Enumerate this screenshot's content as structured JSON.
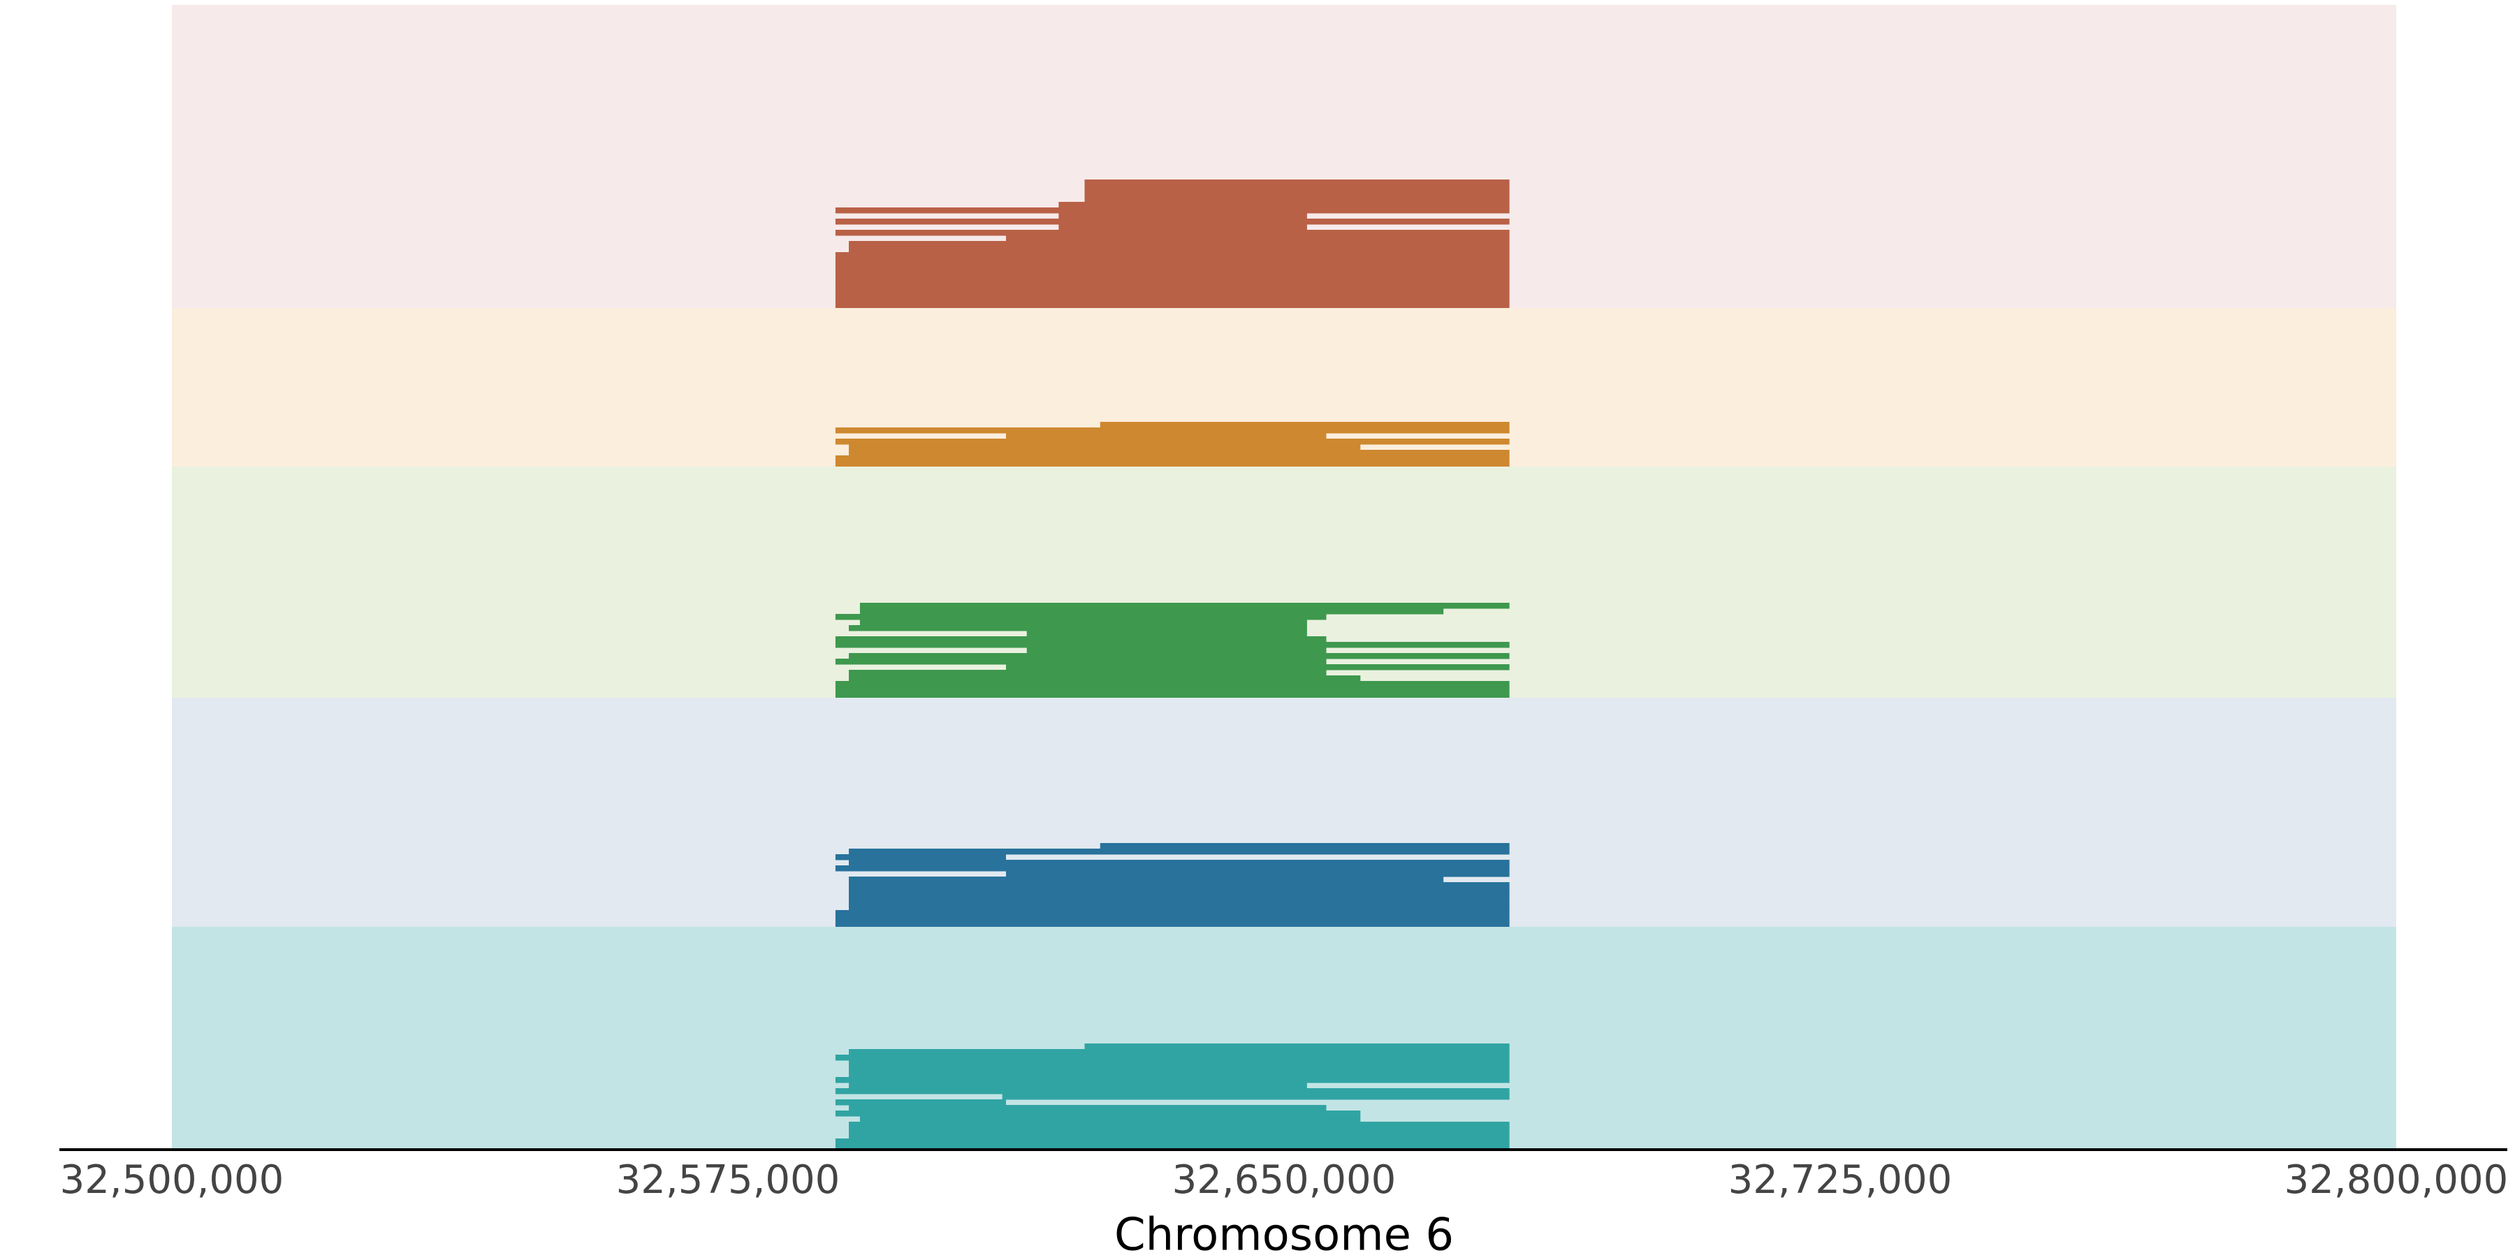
{
  "chart_data": {
    "type": "segments",
    "xlabel": "Chromosome 6",
    "xlim": [
      32500000,
      32800000
    ],
    "xticks": [
      {
        "value": 32500000,
        "label": "32,500,000"
      },
      {
        "value": 32575000,
        "label": "32,575,000"
      },
      {
        "value": 32650000,
        "label": "32,650,000"
      },
      {
        "value": 32725000,
        "label": "32,725,000"
      },
      {
        "value": 32800000,
        "label": "32,800,000"
      }
    ],
    "series": [
      {
        "color": "#b86146",
        "background": "#f7eaeb",
        "segments": [
          [
            32589500,
            32680400
          ],
          [
            32589500,
            32680400
          ],
          [
            32589500,
            32680400
          ],
          [
            32589500,
            32680400
          ],
          [
            32589500,
            32680400
          ],
          [
            32589500,
            32680400
          ],
          [
            32589500,
            32680400
          ],
          [
            32589500,
            32680400
          ],
          [
            32589500,
            32680400
          ],
          [
            32589500,
            32680400
          ],
          [
            32591300,
            32680400
          ],
          [
            32591300,
            32680400
          ],
          [
            32612500,
            32680400
          ],
          [
            32589500,
            32680400
          ],
          [
            32619600,
            32653100
          ],
          [
            32589500,
            32680400
          ],
          [
            32619600,
            32653100
          ],
          [
            32589500,
            32680400
          ],
          [
            32619600,
            32680400
          ],
          [
            32623100,
            32680400
          ],
          [
            32623100,
            32680400
          ],
          [
            32623100,
            32680400
          ],
          [
            32623100,
            32680400
          ]
        ]
      },
      {
        "color": "#ce882f",
        "background": "#fbeedd",
        "segments": [
          [
            32589500,
            32680400
          ],
          [
            32589500,
            32680400
          ],
          [
            32591300,
            32680400
          ],
          [
            32591300,
            32660300
          ],
          [
            32589500,
            32680400
          ],
          [
            32612500,
            32655700
          ],
          [
            32589500,
            32680400
          ],
          [
            32625200,
            32680400
          ]
        ]
      },
      {
        "color": "#3e984e",
        "background": "#eaf1df",
        "segments": [
          [
            32589500,
            32680400
          ],
          [
            32589500,
            32680400
          ],
          [
            32589500,
            32680400
          ],
          [
            32591300,
            32660300
          ],
          [
            32591300,
            32655700
          ],
          [
            32612500,
            32680400
          ],
          [
            32589500,
            32655700
          ],
          [
            32591300,
            32680400
          ],
          [
            32615300,
            32655700
          ],
          [
            32589500,
            32680400
          ],
          [
            32589500,
            32655700
          ],
          [
            32615300,
            32653100
          ],
          [
            32591300,
            32653100
          ],
          [
            32592800,
            32653100
          ],
          [
            32589500,
            32655700
          ],
          [
            32592800,
            32671500
          ],
          [
            32592800,
            32680400
          ]
        ]
      },
      {
        "color": "#28729c",
        "background": "#e2e9f0",
        "segments": [
          [
            32589500,
            32680400
          ],
          [
            32589500,
            32680400
          ],
          [
            32589500,
            32680400
          ],
          [
            32591300,
            32680400
          ],
          [
            32591300,
            32680400
          ],
          [
            32591300,
            32680400
          ],
          [
            32591300,
            32680400
          ],
          [
            32591300,
            32680400
          ],
          [
            32591300,
            32671500
          ],
          [
            32612500,
            32680400
          ],
          [
            32589500,
            32680400
          ],
          [
            32591300,
            32680400
          ],
          [
            32589500,
            32612500
          ],
          [
            32591300,
            32680400
          ],
          [
            32625200,
            32680400
          ]
        ]
      },
      {
        "color": "#30a4a3",
        "background": "#c3e4e5",
        "segments": [
          [
            32589500,
            32680400
          ],
          [
            32589500,
            32680400
          ],
          [
            32591300,
            32680400
          ],
          [
            32591300,
            32680400
          ],
          [
            32591300,
            32680400
          ],
          [
            32592800,
            32660300
          ],
          [
            32589500,
            32660300
          ],
          [
            32591300,
            32655700
          ],
          [
            32589500,
            32612500
          ],
          [
            32612000,
            32680400
          ],
          [
            32589500,
            32680400
          ],
          [
            32591300,
            32653100
          ],
          [
            32589500,
            32680400
          ],
          [
            32591300,
            32680400
          ],
          [
            32591300,
            32680400
          ],
          [
            32591300,
            32680400
          ],
          [
            32589500,
            32680400
          ],
          [
            32591300,
            32680400
          ],
          [
            32623100,
            32680400
          ]
        ]
      }
    ]
  }
}
